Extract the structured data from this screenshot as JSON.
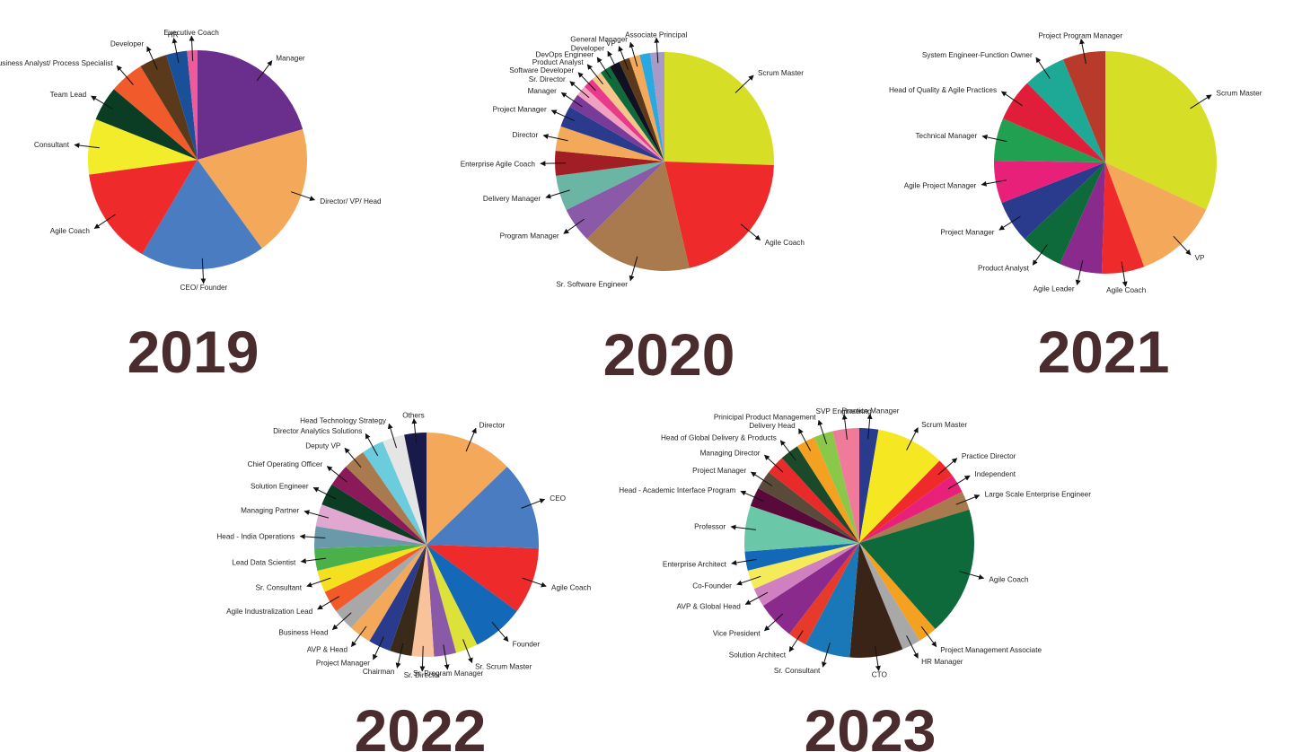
{
  "chart_data": [
    {
      "type": "pie",
      "title": "2019",
      "slices": [
        {
          "label": "Manager",
          "value": 20,
          "color": "#6a2e8c"
        },
        {
          "label": "Director/ VP/ Head",
          "value": 19,
          "color": "#f4a95a"
        },
        {
          "label": "CEO/ Founder",
          "value": 18,
          "color": "#4a7cc2"
        },
        {
          "label": "Agile Coach",
          "value": 14,
          "color": "#ee2a2b"
        },
        {
          "label": "Consultant",
          "value": 8,
          "color": "#f2ec2a"
        },
        {
          "label": "Team Lead",
          "value": 5,
          "color": "#0a3d24"
        },
        {
          "label": "Business Analyst/ Process Specialist",
          "value": 5,
          "color": "#f15a2b"
        },
        {
          "label": "Developer",
          "value": 4,
          "color": "#5a3a1a"
        },
        {
          "label": "HR",
          "value": 3,
          "color": "#1a4f9a"
        },
        {
          "label": "Executive Coach",
          "value": 1.5,
          "color": "#ee5a9a"
        }
      ]
    },
    {
      "type": "pie",
      "title": "2020",
      "slices": [
        {
          "label": "Scrum Master",
          "value": 24.5,
          "color": "#d6df25"
        },
        {
          "label": "Agile Coach",
          "value": 20,
          "color": "#ee2a2b"
        },
        {
          "label": "Sr. Software Engineer",
          "value": 15.5,
          "color": "#a87a4e"
        },
        {
          "label": "Program Manager",
          "value": 5,
          "color": "#8a5aa8"
        },
        {
          "label": "Delivery Manager",
          "value": 5,
          "color": "#6bb5a5"
        },
        {
          "label": "Enterprise Agile Coach",
          "value": 3.5,
          "color": "#a11f24"
        },
        {
          "label": "Director",
          "value": 3.5,
          "color": "#f4a95a"
        },
        {
          "label": "Project Manager",
          "value": 3,
          "color": "#2a3a8c"
        },
        {
          "label": "Manager",
          "value": 2,
          "color": "#7a3a9a"
        },
        {
          "label": "Sr. Director",
          "value": 1.5,
          "color": "#f2a0c0"
        },
        {
          "label": "Software Developer",
          "value": 1.5,
          "color": "#e83a8a"
        },
        {
          "label": "Product Analyst",
          "value": 1.5,
          "color": "#f5c58a"
        },
        {
          "label": "DevOps Engineer",
          "value": 1.5,
          "color": "#0e6a3a"
        },
        {
          "label": "Developer",
          "value": 1.5,
          "color": "#111122"
        },
        {
          "label": "VP",
          "value": 1.5,
          "color": "#5a3a1a"
        },
        {
          "label": "General Manager",
          "value": 1.5,
          "color": "#f4a95a"
        },
        {
          "label": "",
          "value": 1.5,
          "color": "#2aa8e0"
        },
        {
          "label": "Associate Principal",
          "value": 2,
          "color": "#a89ac8"
        }
      ]
    },
    {
      "type": "pie",
      "title": "2021",
      "slices": [
        {
          "label": "Scrum Master",
          "value": 31,
          "color": "#d6df25"
        },
        {
          "label": "VP",
          "value": 12,
          "color": "#f4a95a"
        },
        {
          "label": "Agile Coach",
          "value": 6,
          "color": "#ee2a2b"
        },
        {
          "label": "Agile Leader",
          "value": 6,
          "color": "#8a2a8c"
        },
        {
          "label": "Product Analyst",
          "value": 6,
          "color": "#0e6a3a"
        },
        {
          "label": "Project Manager",
          "value": 6,
          "color": "#2a3a8c"
        },
        {
          "label": "Agile Project Manager",
          "value": 6,
          "color": "#e8207a"
        },
        {
          "label": "Technical Manager",
          "value": 6,
          "color": "#20a050"
        },
        {
          "label": "Head of Quality & Agile Practices",
          "value": 6,
          "color": "#e01e3a"
        },
        {
          "label": "System Engineer-Function Owner",
          "value": 6,
          "color": "#1ea896"
        },
        {
          "label": "Project Program Manager",
          "value": 6,
          "color": "#b83a2a"
        }
      ]
    },
    {
      "type": "pie",
      "title": "2022",
      "slices": [
        {
          "label": "Director",
          "value": 12,
          "color": "#f4a95a"
        },
        {
          "label": "CEO",
          "value": 12,
          "color": "#4a7cc2"
        },
        {
          "label": "Agile Coach",
          "value": 9,
          "color": "#ee2a2b"
        },
        {
          "label": "Founder",
          "value": 7,
          "color": "#1468b8"
        },
        {
          "label": "Sr. Scrum Master",
          "value": 3,
          "color": "#dde23a"
        },
        {
          "label": "Sr. Program Manager",
          "value": 3,
          "color": "#8a5aa8"
        },
        {
          "label": "Sr. Director",
          "value": 3,
          "color": "#f8c39a"
        },
        {
          "label": "Chairman",
          "value": 3,
          "color": "#3a2a1a"
        },
        {
          "label": "Project Manager",
          "value": 3,
          "color": "#2a3a8c"
        },
        {
          "label": "AVP & Head",
          "value": 3,
          "color": "#f4a95a"
        },
        {
          "label": "Business Head",
          "value": 3,
          "color": "#a8a8a8"
        },
        {
          "label": "Agile Industralization Lead",
          "value": 3,
          "color": "#f15a2b"
        },
        {
          "label": "Sr. Consultant",
          "value": 3,
          "color": "#f5e020"
        },
        {
          "label": "Lead Data Scientist",
          "value": 3,
          "color": "#4ab04a"
        },
        {
          "label": "Head - India Operations",
          "value": 3,
          "color": "#6a9aaa"
        },
        {
          "label": "Managing Partner",
          "value": 3,
          "color": "#e0a8d0"
        },
        {
          "label": "Solution Engineer",
          "value": 3,
          "color": "#0a3d24"
        },
        {
          "label": "Chief Operating Officer",
          "value": 3,
          "color": "#8a1a5a"
        },
        {
          "label": "Deputy VP",
          "value": 3,
          "color": "#a87a4e"
        },
        {
          "label": "Director Analytics Solutions",
          "value": 3,
          "color": "#6accdc"
        },
        {
          "label": "Head Technology Strategy",
          "value": 3,
          "color": "#e5e5e5"
        },
        {
          "label": "Others",
          "value": 3,
          "color": "#1a1a4a"
        }
      ]
    },
    {
      "type": "pie",
      "title": "2023",
      "slices": [
        {
          "label": "Practice Manager",
          "value": 2.5,
          "color": "#2a3a8c"
        },
        {
          "label": "Scrum Master",
          "value": 9,
          "color": "#f5e822"
        },
        {
          "label": "Practice Director",
          "value": 2.5,
          "color": "#ee2a2b"
        },
        {
          "label": "Independent",
          "value": 2.5,
          "color": "#e8207a"
        },
        {
          "label": "Large Scale Enterprise Engineer",
          "value": 2.5,
          "color": "#a87a4e"
        },
        {
          "label": "Agile Coach",
          "value": 17,
          "color": "#0e6a3a"
        },
        {
          "label": "Project Management Associate",
          "value": 2.5,
          "color": "#f4a020"
        },
        {
          "label": "HR Manager",
          "value": 2.5,
          "color": "#a8a8a8"
        },
        {
          "label": "CTO",
          "value": 7,
          "color": "#3a2418"
        },
        {
          "label": "Sr. Consultant",
          "value": 6,
          "color": "#1a78b8"
        },
        {
          "label": "Solution Architect",
          "value": 2.5,
          "color": "#e83a2a"
        },
        {
          "label": "Vice President",
          "value": 5,
          "color": "#8a2a8c"
        },
        {
          "label": "AVP & Global Head",
          "value": 2.5,
          "color": "#d080c0"
        },
        {
          "label": "Co-Founder",
          "value": 2.5,
          "color": "#f5ea5a"
        },
        {
          "label": "Enterprise Architect",
          "value": 2.5,
          "color": "#1468b8"
        },
        {
          "label": "Professor",
          "value": 6,
          "color": "#6ac8a8"
        },
        {
          "label": "Head - Academic Interface Program",
          "value": 2.5,
          "color": "#5a0a3a"
        },
        {
          "label": "Project Manager",
          "value": 2.5,
          "color": "#5a4a3a"
        },
        {
          "label": "Managing Director",
          "value": 2.5,
          "color": "#e82a2a"
        },
        {
          "label": "Head of Global Delivery & Products",
          "value": 2.5,
          "color": "#1a4a2a"
        },
        {
          "label": "Delivery Head",
          "value": 2.5,
          "color": "#f4a020"
        },
        {
          "label": "Prinicipal Product Management",
          "value": 2.5,
          "color": "#8ac84a"
        },
        {
          "label": "SVP Engineering",
          "value": 3.5,
          "color": "#f07a9a"
        }
      ]
    }
  ]
}
